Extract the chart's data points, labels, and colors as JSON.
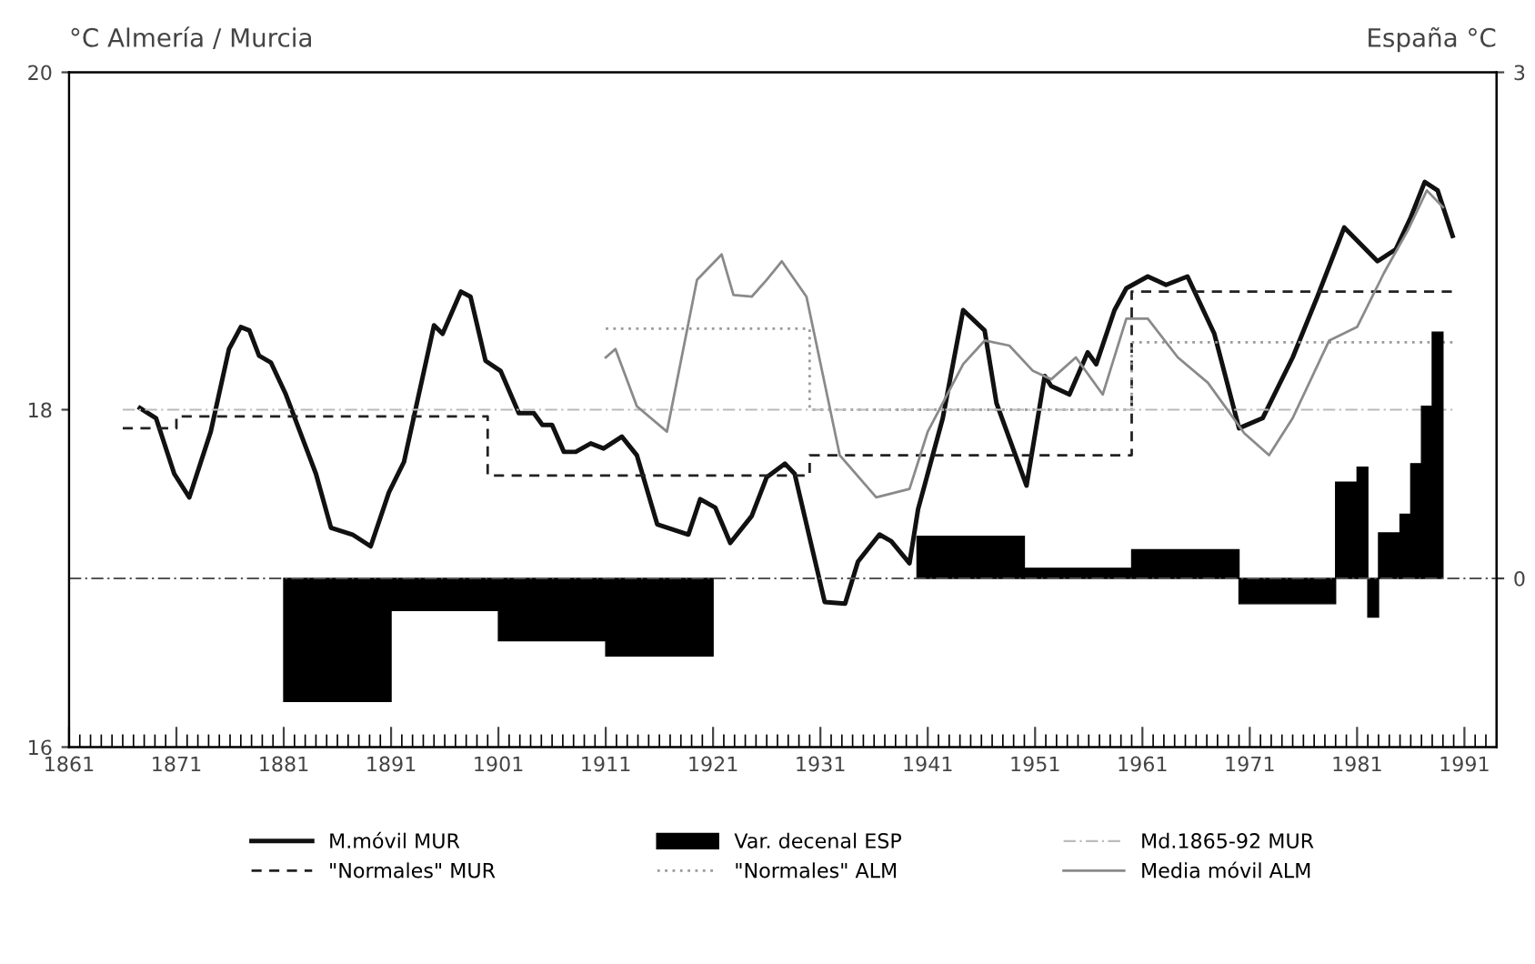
{
  "chart_data": {
    "type": "line",
    "ylabel": "°C Almería / Murcia",
    "y2label": "España °C",
    "xlim": [
      1861,
      1994
    ],
    "ylim": [
      16,
      20
    ],
    "yticks": [
      16,
      18,
      20
    ],
    "y2lim": [
      -1,
      3
    ],
    "y2ticks": [
      0,
      3
    ],
    "xticks": [
      1861,
      {
        "value": 1862,
        "label": null
      },
      {
        "value": 1863,
        "label": null
      },
      {
        "value": 1864,
        "label": null
      },
      {
        "value": 1865,
        "label": null
      },
      {
        "value": 1866,
        "label": null
      },
      {
        "value": 1867,
        "label": null
      },
      {
        "value": 1868,
        "label": null
      },
      {
        "value": 1869,
        "label": null
      },
      {
        "value": 1870,
        "label": null
      },
      1871,
      {
        "value": 1872,
        "label": null
      },
      {
        "value": 1873,
        "label": null
      },
      {
        "value": 1874,
        "label": null
      },
      {
        "value": 1875,
        "label": null
      },
      {
        "value": 1876,
        "label": null
      },
      {
        "value": 1877,
        "label": null
      },
      {
        "value": 1878,
        "label": null
      },
      {
        "value": 1879,
        "label": null
      },
      {
        "value": 1880,
        "label": null
      },
      1881,
      {
        "value": 1882,
        "label": null
      },
      {
        "value": 1883,
        "label": null
      },
      {
        "value": 1884,
        "label": null
      },
      {
        "value": 1885,
        "label": null
      },
      {
        "value": 1886,
        "label": null
      },
      {
        "value": 1887,
        "label": null
      },
      {
        "value": 1888,
        "label": null
      },
      {
        "value": 1889,
        "label": null
      },
      {
        "value": 1890,
        "label": null
      },
      1891,
      {
        "value": 1892,
        "label": null
      },
      {
        "value": 1893,
        "label": null
      },
      {
        "value": 1894,
        "label": null
      },
      {
        "value": 1895,
        "label": null
      },
      {
        "value": 1896,
        "label": null
      },
      {
        "value": 1897,
        "label": null
      },
      {
        "value": 1898,
        "label": null
      },
      {
        "value": 1899,
        "label": null
      },
      {
        "value": 1900,
        "label": null
      },
      1901,
      {
        "value": 1902,
        "label": null
      },
      {
        "value": 1903,
        "label": null
      },
      {
        "value": 1904,
        "label": null
      },
      {
        "value": 1905,
        "label": null
      },
      {
        "value": 1906,
        "label": null
      },
      {
        "value": 1907,
        "label": null
      },
      {
        "value": 1908,
        "label": null
      },
      {
        "value": 1909,
        "label": null
      },
      {
        "value": 1910,
        "label": null
      },
      1911,
      {
        "value": 1912,
        "label": null
      },
      {
        "value": 1913,
        "label": null
      },
      {
        "value": 1914,
        "label": null
      },
      {
        "value": 1915,
        "label": null
      },
      {
        "value": 1916,
        "label": null
      },
      {
        "value": 1917,
        "label": null
      },
      {
        "value": 1918,
        "label": null
      },
      {
        "value": 1919,
        "label": null
      },
      {
        "value": 1920,
        "label": null
      },
      1921,
      {
        "value": 1922,
        "label": null
      },
      {
        "value": 1923,
        "label": null
      },
      {
        "value": 1924,
        "label": null
      },
      {
        "value": 1925,
        "label": null
      },
      {
        "value": 1926,
        "label": null
      },
      {
        "value": 1927,
        "label": null
      },
      {
        "value": 1928,
        "label": null
      },
      {
        "value": 1929,
        "label": null
      },
      {
        "value": 1930,
        "label": null
      },
      1931,
      {
        "value": 1932,
        "label": null
      },
      {
        "value": 1933,
        "label": null
      },
      {
        "value": 1934,
        "label": null
      },
      {
        "value": 1935,
        "label": null
      },
      {
        "value": 1936,
        "label": null
      },
      {
        "value": 1937,
        "label": null
      },
      {
        "value": 1938,
        "label": null
      },
      {
        "value": 1939,
        "label": null
      },
      {
        "value": 1940,
        "label": null
      },
      1941,
      {
        "value": 1942,
        "label": null
      },
      {
        "value": 1943,
        "label": null
      },
      {
        "value": 1944,
        "label": null
      },
      {
        "value": 1945,
        "label": null
      },
      {
        "value": 1946,
        "label": null
      },
      {
        "value": 1947,
        "label": null
      },
      {
        "value": 1948,
        "label": null
      },
      {
        "value": 1949,
        "label": null
      },
      {
        "value": 1950,
        "label": null
      },
      1951,
      {
        "value": 1952,
        "label": null
      },
      {
        "value": 1953,
        "label": null
      },
      {
        "value": 1954,
        "label": null
      },
      {
        "value": 1955,
        "label": null
      },
      {
        "value": 1956,
        "label": null
      },
      {
        "value": 1957,
        "label": null
      },
      {
        "value": 1958,
        "label": null
      },
      {
        "value": 1959,
        "label": null
      },
      {
        "value": 1960,
        "label": null
      },
      1961,
      {
        "value": 1962,
        "label": null
      },
      {
        "value": 1963,
        "label": null
      },
      {
        "value": 1964,
        "label": null
      },
      {
        "value": 1965,
        "label": null
      },
      {
        "value": 1966,
        "label": null
      },
      {
        "value": 1967,
        "label": null
      },
      {
        "value": 1968,
        "label": null
      },
      {
        "value": 1969,
        "label": null
      },
      {
        "value": 1970,
        "label": null
      },
      1971,
      {
        "value": 1972,
        "label": null
      },
      {
        "value": 1973,
        "label": null
      },
      {
        "value": 1974,
        "label": null
      },
      {
        "value": 1975,
        "label": null
      },
      {
        "value": 1976,
        "label": null
      },
      {
        "value": 1977,
        "label": null
      },
      {
        "value": 1978,
        "label": null
      },
      {
        "value": 1979,
        "label": null
      },
      {
        "value": 1980,
        "label": null
      },
      1981,
      {
        "value": 1982,
        "label": null
      },
      {
        "value": 1983,
        "label": null
      },
      {
        "value": 1984,
        "label": null
      },
      {
        "value": 1985,
        "label": null
      },
      {
        "value": 1986,
        "label": null
      },
      {
        "value": 1987,
        "label": null
      },
      {
        "value": 1988,
        "label": null
      },
      {
        "value": 1989,
        "label": null
      },
      {
        "value": 1990,
        "label": null
      },
      1991,
      {
        "value": 1992,
        "label": null
      },
      {
        "value": 1993,
        "label": null
      }
    ],
    "grid": false,
    "legend": "bottom",
    "ref_lines": [
      {
        "axis": "y2",
        "value": 0,
        "color": "#555555",
        "line_style": "dashdot"
      }
    ],
    "series": [
      {
        "name": "M.móvil MUR",
        "color": "#111111",
        "line_style": "solid",
        "x": [
          1867.6,
          1869.1,
          1870.8,
          1872.2,
          1874.2,
          1875.9,
          1877.0,
          1877.8,
          1878.7,
          1879.8,
          1881.2,
          1884.0,
          1885.4,
          1887.4,
          1889.1,
          1890.8,
          1892.2,
          1895.0,
          1895.8,
          1897.5,
          1898.4,
          1899.8,
          1901.2,
          1902.9,
          1904.3,
          1905.1,
          1906.0,
          1907.1,
          1908.2,
          1909.6,
          1910.8,
          1912.5,
          1913.9,
          1915.8,
          1918.7,
          1919.8,
          1921.2,
          1922.6,
          1924.6,
          1926.0,
          1927.7,
          1928.6,
          1931.4,
          1933.3,
          1934.5,
          1936.5,
          1937.6,
          1939.3,
          1940.1,
          1942.4,
          1944.3,
          1946.3,
          1947.4,
          1950.2,
          1951.9,
          1952.5,
          1954.2,
          1955.9,
          1956.7,
          1958.4,
          1959.5,
          1961.5,
          1963.2,
          1965.2,
          1967.7,
          1970.0,
          1972.2,
          1975.0,
          1977.3,
          1979.8,
          1982.9,
          1984.6,
          1986.0,
          1987.3,
          1988.5,
          1989.9
        ],
        "values": [
          18.01,
          17.95,
          17.62,
          17.48,
          17.87,
          18.36,
          18.49,
          18.47,
          18.32,
          18.28,
          18.09,
          17.62,
          17.3,
          17.26,
          17.19,
          17.51,
          17.69,
          18.5,
          18.45,
          18.7,
          18.67,
          18.29,
          18.23,
          17.98,
          17.98,
          17.91,
          17.91,
          17.75,
          17.75,
          17.8,
          17.77,
          17.84,
          17.73,
          17.32,
          17.26,
          17.47,
          17.42,
          17.21,
          17.37,
          17.6,
          17.68,
          17.62,
          16.86,
          16.85,
          17.1,
          17.26,
          17.22,
          17.09,
          17.41,
          17.95,
          18.59,
          18.47,
          18.04,
          17.55,
          18.2,
          18.14,
          18.09,
          18.34,
          18.27,
          18.59,
          18.72,
          18.79,
          18.74,
          18.79,
          18.45,
          17.89,
          17.95,
          18.31,
          18.67,
          19.08,
          18.88,
          18.95,
          19.14,
          19.35,
          19.3,
          19.03
        ]
      },
      {
        "name": "\"Normales\" MUR",
        "color": "#222222",
        "line_style": "dashed",
        "x": [
          1866,
          1871,
          1871,
          1900,
          1900,
          1930,
          1930,
          1960,
          1960,
          1990
        ],
        "values": [
          17.89,
          17.89,
          17.96,
          17.96,
          17.61,
          17.61,
          17.73,
          17.73,
          18.7,
          18.7
        ]
      },
      {
        "name": "Var. decenal ESP",
        "type": "histogram",
        "axis": "y2",
        "color": "#000000",
        "bins": [
          1881,
          1891,
          1901,
          1911,
          1921,
          1940,
          1950,
          1960,
          1970,
          1979,
          1981,
          1982,
          1983,
          1985,
          1986,
          1987,
          1988,
          1989
        ],
        "values": [
          -0.73,
          -0.19,
          -0.37,
          -0.46,
          null,
          0.25,
          0.06,
          0.17,
          -0.15,
          0.57,
          0.66,
          -0.23,
          0.27,
          0.38,
          0.68,
          1.02,
          1.46
        ]
      },
      {
        "name": "\"Normales\" ALM",
        "color": "#9a9a9a",
        "line_style": "dotted",
        "x": [
          1911,
          1930,
          1930,
          1960,
          1960,
          1990
        ],
        "values": [
          18.48,
          18.48,
          18.0,
          18.0,
          18.4,
          18.4
        ]
      },
      {
        "name": "Md.1865-92 MUR",
        "color": "#bbbbbb",
        "line_style": "dashdot",
        "x": [
          1866,
          1990
        ],
        "values": [
          18.0,
          18.0
        ]
      },
      {
        "name": "Media móvil ALM",
        "color": "#8a8a8a",
        "line_style": "solid",
        "x": [
          1911.0,
          1911.9,
          1913.9,
          1916.7,
          1919.5,
          1921.8,
          1922.9,
          1924.6,
          1926.0,
          1927.4,
          1929.7,
          1932.8,
          1936.2,
          1939.3,
          1941.0,
          1944.3,
          1946.3,
          1948.6,
          1950.8,
          1952.5,
          1954.8,
          1957.3,
          1959.5,
          1961.5,
          1964.3,
          1967.1,
          1970.5,
          1972.8,
          1975.0,
          1978.4,
          1981.0,
          1983.5,
          1985.7,
          1987.5,
          1989.0
        ],
        "values": [
          18.31,
          18.36,
          18.02,
          17.87,
          18.77,
          18.92,
          18.68,
          18.67,
          18.77,
          18.88,
          18.67,
          17.73,
          17.48,
          17.53,
          17.87,
          18.27,
          18.41,
          18.38,
          18.23,
          18.18,
          18.31,
          18.09,
          18.54,
          18.54,
          18.31,
          18.16,
          17.86,
          17.73,
          17.95,
          18.41,
          18.49,
          18.81,
          19.06,
          19.3,
          19.2
        ]
      }
    ]
  }
}
